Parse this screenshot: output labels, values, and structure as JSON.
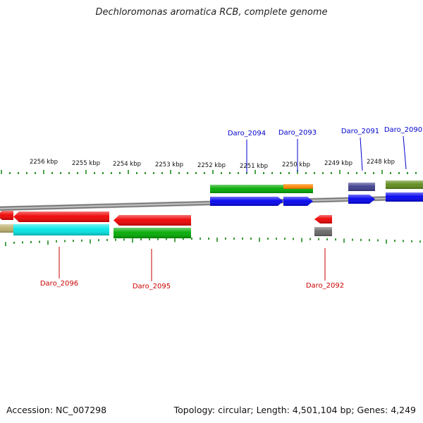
{
  "title": "Dechloromonas aromatica RCB, complete genome",
  "footer": {
    "accession": "Accession: NC_007298",
    "topology": "Topology: circular; Length: 4,501,104 bp; Genes: 4,249"
  },
  "scale": {
    "unit": "kbp",
    "labels": [
      "2256 kbp",
      "2255 kbp",
      "2254 kbp",
      "2253 kbp",
      "2252 kbp",
      "2251 kbp",
      "2250 kbp",
      "2249 kbp",
      "2248 kbp"
    ]
  },
  "colors": {
    "backbone": "#8c8c8c",
    "tick": "#1f8a1f",
    "forward_label": "#0000cc",
    "reverse_label": "#cc0000"
  },
  "gene_labels": {
    "forward": [
      "Daro_2094",
      "Daro_2093",
      "Daro_2091",
      "Daro_2090"
    ],
    "reverse": [
      "Daro_2096",
      "Daro_2095",
      "Daro_2092"
    ]
  },
  "features": [
    {
      "strand": "+",
      "kind": "gene",
      "color": "#00aa00"
    },
    {
      "strand": "+",
      "kind": "gene",
      "color": "#ff8800"
    },
    {
      "strand": "+",
      "kind": "CDS",
      "color": "#0000ee"
    },
    {
      "strand": "+",
      "kind": "CDS",
      "color": "#0000ee"
    },
    {
      "strand": "+",
      "kind": "gene",
      "color": "#3c3c8c"
    },
    {
      "strand": "+",
      "kind": "CDS",
      "color": "#0000ee"
    },
    {
      "strand": "+",
      "kind": "gene",
      "color": "#5f8a1a"
    },
    {
      "strand": "+",
      "kind": "CDS",
      "color": "#0000ee"
    },
    {
      "strand": "-",
      "kind": "CDS",
      "color": "#ee0000"
    },
    {
      "strand": "-",
      "kind": "gene",
      "color": "#bdb06e"
    },
    {
      "strand": "-",
      "kind": "gene",
      "color": "#00e6e6"
    },
    {
      "strand": "-",
      "kind": "CDS",
      "color": "#ee0000"
    },
    {
      "strand": "-",
      "kind": "gene",
      "color": "#00aa00"
    },
    {
      "strand": "-",
      "kind": "CDS",
      "color": "#ee0000"
    },
    {
      "strand": "-",
      "kind": "gene",
      "color": "#666666"
    }
  ]
}
